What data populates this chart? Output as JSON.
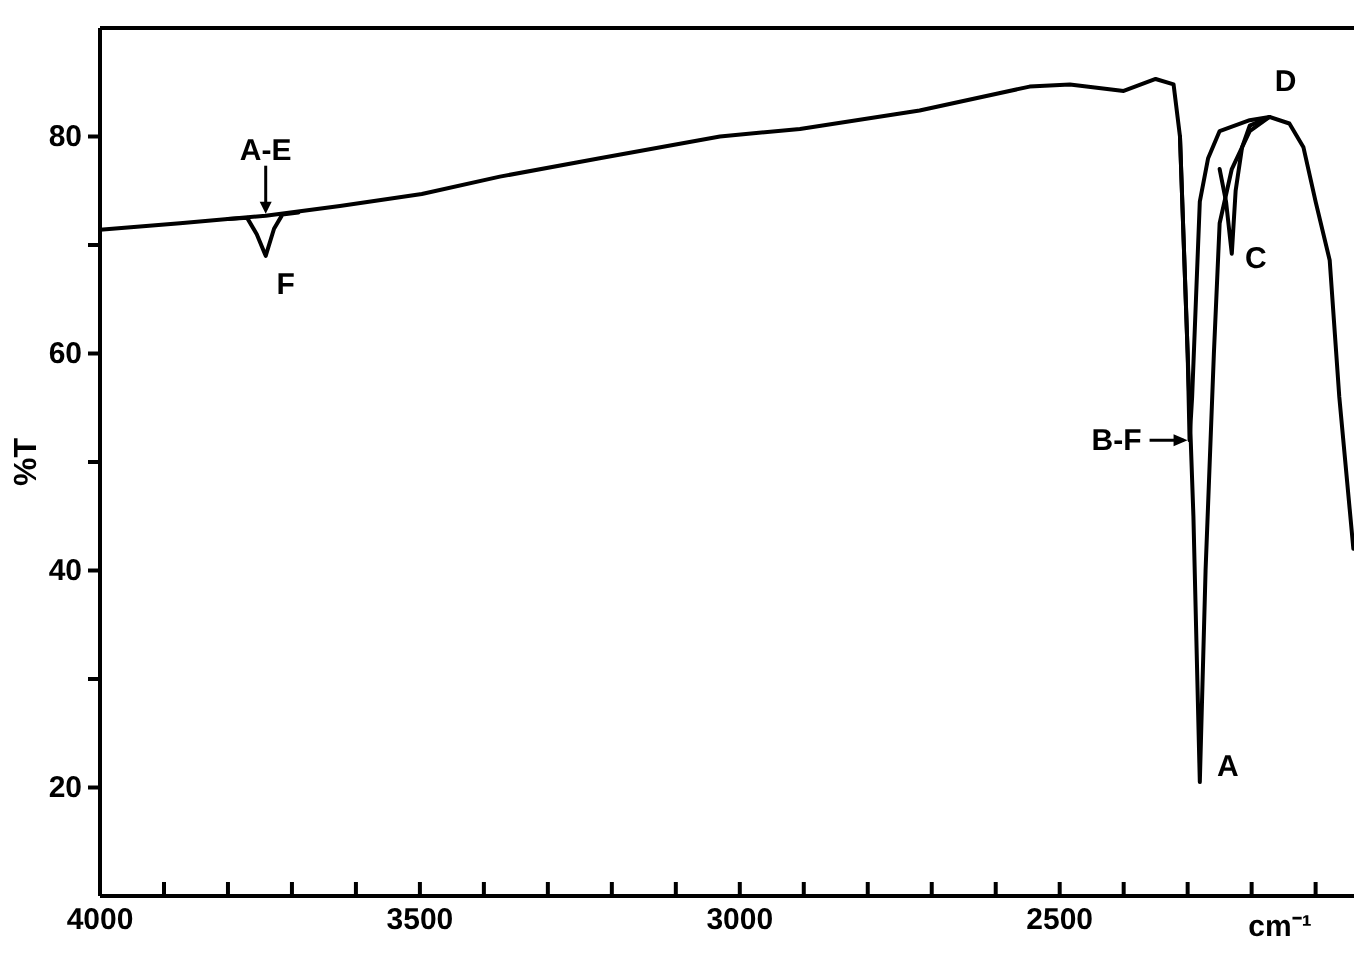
{
  "chart_data": {
    "type": "line",
    "xlabel": "cm⁻¹",
    "ylabel": "%T",
    "xlim": [
      4000,
      2040
    ],
    "ylim": [
      10,
      90
    ],
    "xticks": [
      4000,
      {
        "value": 3900,
        "label": null
      },
      {
        "value": 3800,
        "label": null
      },
      {
        "value": 3700,
        "label": null
      },
      {
        "value": 3600,
        "label": null
      },
      3500,
      {
        "value": 3400,
        "label": null
      },
      {
        "value": 3300,
        "label": null
      },
      {
        "value": 3200,
        "label": null
      },
      {
        "value": 3100,
        "label": null
      },
      3000,
      {
        "value": 2900,
        "label": null
      },
      {
        "value": 2800,
        "label": null
      },
      {
        "value": 2700,
        "label": null
      },
      {
        "value": 2600,
        "label": null
      },
      2500,
      {
        "value": 2400,
        "label": null
      },
      {
        "value": 2300,
        "label": null
      },
      {
        "value": 2200,
        "label": null
      },
      {
        "value": 2100,
        "label": null
      }
    ],
    "yticks": [
      20,
      {
        "value": 30,
        "label": null
      },
      40,
      {
        "value": 50,
        "label": null
      },
      60,
      {
        "value": 70,
        "label": null
      },
      80
    ],
    "grid": false,
    "marker": "none",
    "line_style": "solid",
    "series": [
      {
        "color": "#000000",
        "x": [
          4000,
          3875,
          3741,
          3625,
          3497,
          3375,
          3219,
          3031,
          2906,
          2719,
          2547,
          2484,
          2400,
          2350,
          2322,
          2312,
          2300,
          2291,
          2281,
          2272,
          2259,
          2250,
          2231,
          2203,
          2172,
          2141,
          2119,
          2100,
          2078,
          2063,
          2041
        ],
        "values": [
          71.4,
          72.0,
          72.7,
          73.6,
          74.7,
          76.3,
          78,
          80,
          80.7,
          82.4,
          84.6,
          84.8,
          84.2,
          85.3,
          84.8,
          80,
          60,
          45,
          20.5,
          40,
          60,
          72,
          77,
          80.5,
          81.8,
          81.2,
          79,
          74,
          68.6,
          56,
          42
        ]
      },
      {
        "color": "#000000",
        "x": [
          2312,
          2300,
          2297,
          2293,
          2287,
          2281,
          2268,
          2250,
          2203,
          2172
        ],
        "values": [
          80,
          60,
          52,
          56,
          65,
          74,
          78,
          80.5,
          81.5,
          81.8
        ]
      },
      {
        "color": "#000000",
        "x": [
          2250,
          2240,
          2231,
          2225,
          2215,
          2203,
          2172
        ],
        "values": [
          77,
          74,
          69.2,
          75,
          79,
          81,
          81.8
        ]
      },
      {
        "color": "#000000",
        "x": [
          3800,
          3770,
          3755,
          3741,
          3728,
          3715,
          3690
        ],
        "values": [
          72.4,
          72.5,
          71,
          69,
          71.5,
          72.8,
          73
        ]
      }
    ],
    "annotations": [
      {
        "text": "A-E",
        "x": 3741,
        "y": 72.7
      },
      {
        "text": "F",
        "x": 3741,
        "y": 69
      },
      {
        "text": "B-F",
        "x": 2297,
        "y": 52
      },
      {
        "text": "A",
        "x": 2281,
        "y": 20.5
      },
      {
        "text": "C",
        "x": 2231,
        "y": 69.2
      },
      {
        "text": "D",
        "x": 2172,
        "y": 81.8
      }
    ]
  }
}
